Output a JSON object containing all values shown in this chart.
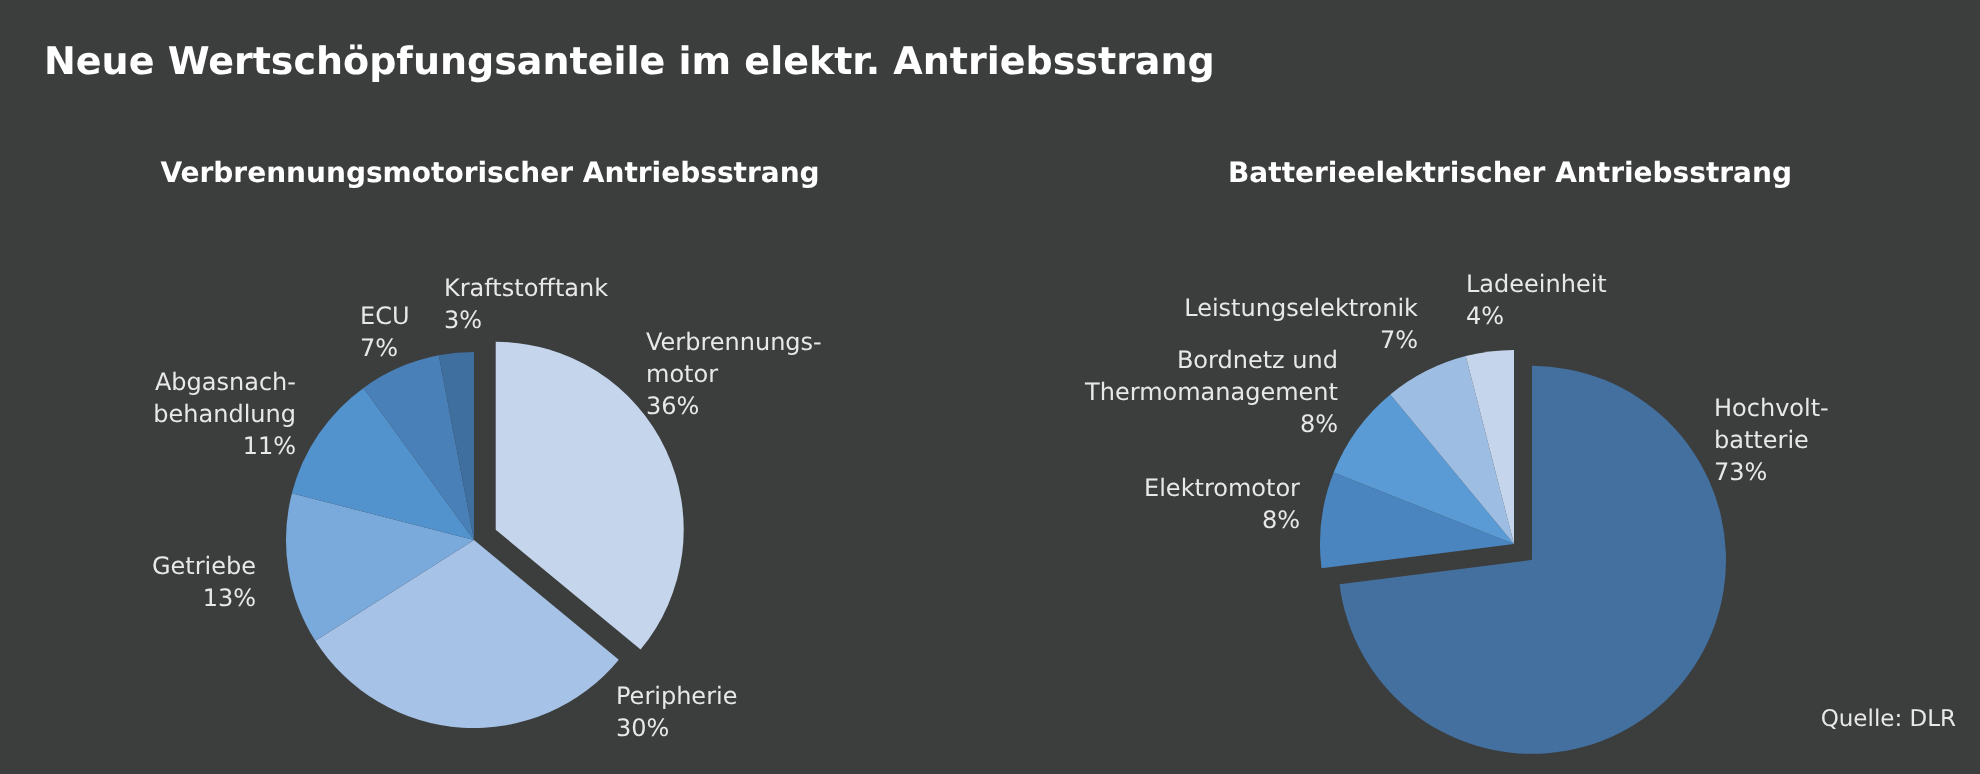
{
  "chart_data": [
    {
      "type": "pie",
      "title": "Neue Wertschöpfungsanteile im elektr. Antriebsstrang",
      "subtitle": "Verbrennungsmotorischer Antriebsstrang",
      "categories": [
        "Verbrennungs-\nmotor",
        "Peripherie",
        "Getriebe",
        "Abgasnach-\nbehandlung",
        "ECU",
        "Kraftstofftank"
      ],
      "values": [
        36,
        30,
        13,
        11,
        7,
        3
      ],
      "value_labels": [
        "36%",
        "30%",
        "13%",
        "11%",
        "7%",
        "3%"
      ],
      "colors": [
        "#c5d6ec",
        "#a6c2e6",
        "#7aa9dc",
        "#5393cd",
        "#4a80b8",
        "#3f6f9f"
      ],
      "legend": false
    },
    {
      "type": "pie",
      "title": "Batterieelektrischer Antriebsstrang",
      "categories": [
        "Hochvolt-\nbatterie",
        "Elektromotor",
        "Bordnetz und\nThermomanagement",
        "Leistungselektronik",
        "Ladeeinheit"
      ],
      "values": [
        73,
        8,
        8,
        7,
        4
      ],
      "value_labels": [
        "73%",
        "8%",
        "8%",
        "7%",
        "4%"
      ],
      "colors": [
        "#44709f",
        "#4a85c0",
        "#5a9bd5",
        "#9dbde3",
        "#c5d6ec"
      ],
      "annotations": [
        "Quelle: DLR"
      ],
      "legend": false
    }
  ]
}
